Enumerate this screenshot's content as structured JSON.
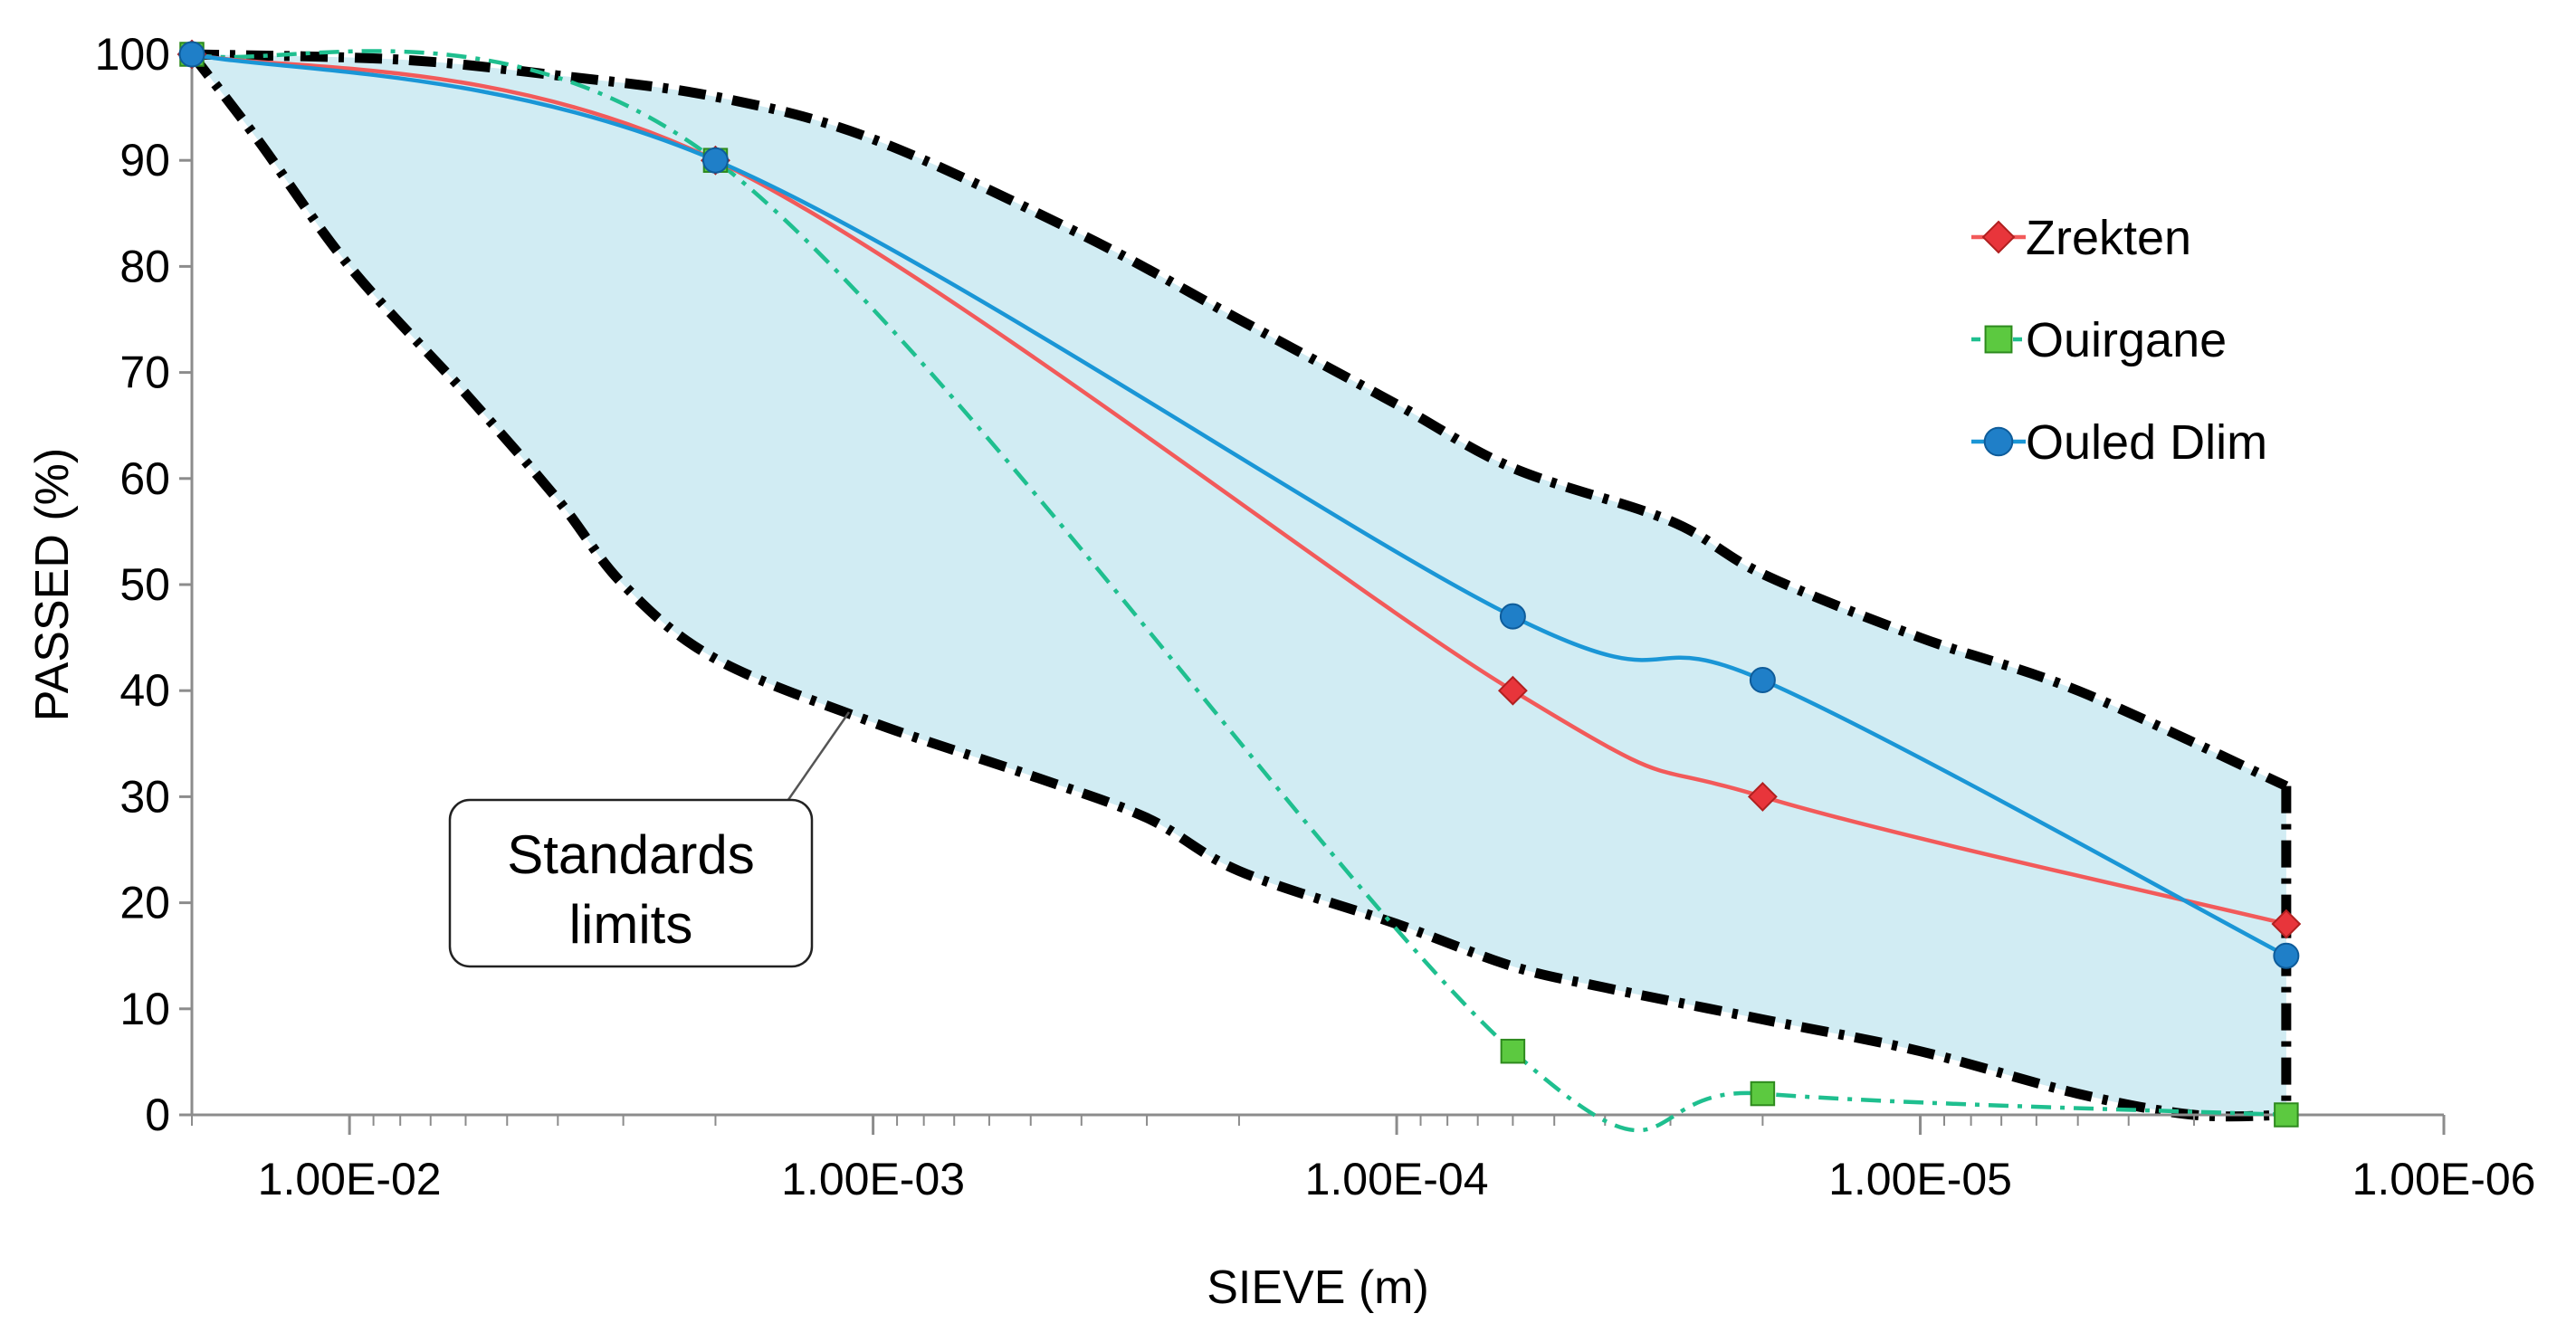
{
  "chart_data": {
    "type": "line",
    "title": "",
    "xlabel": "SIEVE (m)",
    "ylabel": "PASSED (%)",
    "x_scale": "log",
    "x_reversed": true,
    "xlim": [
      0.02,
      1e-06
    ],
    "ylim": [
      0,
      100
    ],
    "y_ticks": [
      "0",
      "10",
      "20",
      "30",
      "40",
      "50",
      "60",
      "70",
      "80",
      "90",
      "100"
    ],
    "x_tick_values": [
      0.01,
      0.001,
      0.0001,
      1e-05,
      1e-06
    ],
    "x_tick_labels": [
      "1.00E-02",
      "1.00E-03",
      "1.00E-04",
      "1.00E-05",
      "1.00E-06"
    ],
    "grid": false,
    "legend_position": "top-right",
    "series": [
      {
        "name": "Zrekten",
        "color": "#F25A5A",
        "marker_color": "#E8353B",
        "marker": "diamond",
        "line_style": "solid",
        "x": [
          0.02,
          0.002,
          6e-05,
          2e-05,
          2e-06
        ],
        "values": [
          100,
          90,
          40,
          30,
          18
        ]
      },
      {
        "name": "Ouirgane",
        "color": "#1FBF8F",
        "marker_color": "#5CC940",
        "marker": "square",
        "line_style": "dash-dot",
        "x": [
          0.02,
          0.002,
          6e-05,
          2e-05,
          2e-06
        ],
        "values": [
          100,
          90,
          6,
          2,
          0
        ]
      },
      {
        "name": "Ouled Dlim",
        "color": "#1A96D6",
        "marker_color": "#1F7FC8",
        "marker": "circle",
        "line_style": "solid",
        "x": [
          0.02,
          0.002,
          6e-05,
          2e-05,
          2e-06
        ],
        "values": [
          100,
          90,
          47,
          41,
          15
        ]
      }
    ],
    "standards_limits": {
      "label": "Standards limits",
      "fill_color": "#D1ECF3",
      "upper": {
        "x": [
          0.02,
          0.008,
          0.004,
          0.002,
          0.001,
          0.0004,
          0.0002,
          0.0001,
          6e-05,
          3e-05,
          2e-05,
          1e-05,
          5e-06,
          2e-06
        ],
        "values": [
          100,
          99.5,
          98,
          96,
          92,
          83,
          75,
          67,
          61,
          56,
          51,
          45,
          40,
          31
        ]
      },
      "lower": {
        "x": [
          0.02,
          0.015,
          0.01,
          0.006,
          0.004,
          0.003,
          0.002,
          0.001,
          0.0005,
          0.0003,
          0.0002,
          0.0001,
          6e-05,
          4e-05,
          2e-05,
          1e-05,
          5e-06,
          3e-06,
          2e-06
        ],
        "values": [
          100,
          92,
          80,
          68,
          58,
          50,
          43,
          37,
          32,
          28,
          23,
          18,
          14,
          12,
          9,
          6,
          2,
          0,
          0
        ]
      }
    }
  }
}
